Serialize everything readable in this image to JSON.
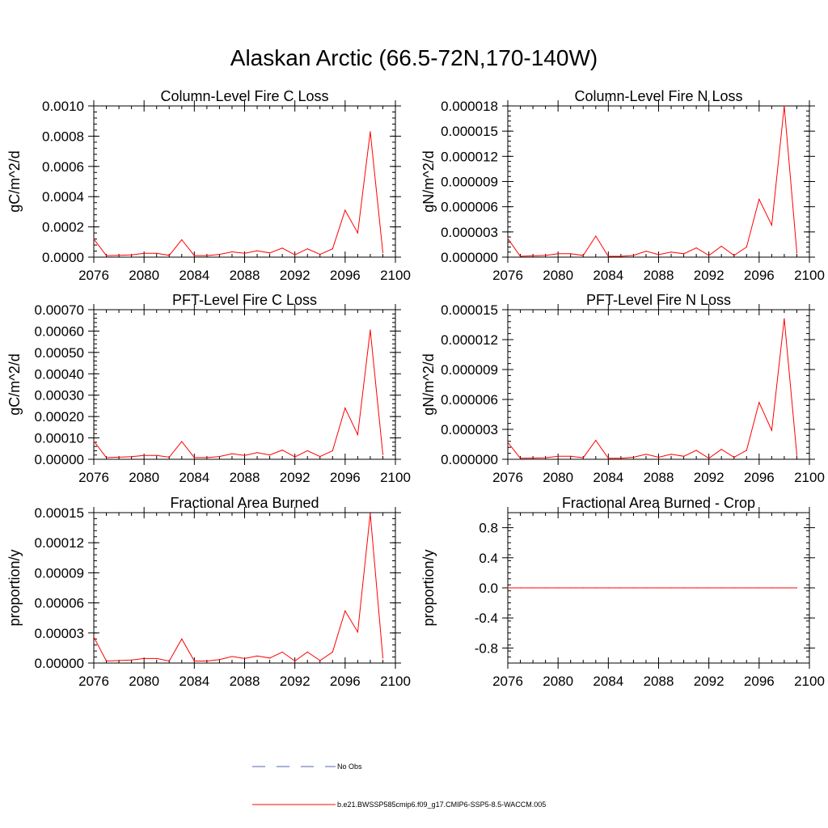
{
  "title": "Alaskan Arctic (66.5-72N,170-140W)",
  "colors": {
    "model": "#ff0000",
    "obs": "#5566aa",
    "axis": "#000000"
  },
  "chart_data": [
    {
      "type": "line",
      "title": "Column-Level Fire C Loss",
      "ylabel": "gC/m^2/d",
      "xlim": [
        2076,
        2100
      ],
      "ylim": [
        0,
        0.001
      ],
      "xticks": [
        "2076",
        "2080",
        "2084",
        "2088",
        "2092",
        "2096",
        "2100"
      ],
      "yticks": [
        "0.0000",
        "0.0002",
        "0.0004",
        "0.0006",
        "0.0008",
        "0.0010"
      ],
      "x": [
        2076,
        2077,
        2078,
        2079,
        2080,
        2081,
        2082,
        2083,
        2084,
        2085,
        2086,
        2087,
        2088,
        2089,
        2090,
        2091,
        2092,
        2093,
        2094,
        2095,
        2096,
        2097,
        2098,
        2099
      ],
      "values": [
        0.00012,
        1e-05,
        1.2e-05,
        1.5e-05,
        2.5e-05,
        2.5e-05,
        1.2e-05,
        0.000115,
        1e-05,
        1e-05,
        1.8e-05,
        3.5e-05,
        2.5e-05,
        4.2e-05,
        2.8e-05,
        6e-05,
        1.5e-05,
        5.5e-05,
        1.8e-05,
        5.5e-05,
        0.00031,
        0.00016,
        0.00083,
        3e-05
      ]
    },
    {
      "type": "line",
      "title": "Column-Level Fire N Loss",
      "ylabel": "gN/m^2/d",
      "xlim": [
        2076,
        2100
      ],
      "ylim": [
        0,
        1.8e-05
      ],
      "xticks": [
        "2076",
        "2080",
        "2084",
        "2088",
        "2092",
        "2096",
        "2100"
      ],
      "yticks": [
        "0.000000",
        "0.000003",
        "0.000006",
        "0.000009",
        "0.000012",
        "0.000015",
        "0.000018"
      ],
      "x": [
        2076,
        2077,
        2078,
        2079,
        2080,
        2081,
        2082,
        2083,
        2084,
        2085,
        2086,
        2087,
        2088,
        2089,
        2090,
        2091,
        2092,
        2093,
        2094,
        2095,
        2096,
        2097,
        2098,
        2099
      ],
      "values": [
        2.2e-06,
        1e-07,
        1.5e-07,
        2e-07,
        4e-07,
        4e-07,
        2e-07,
        2.5e-06,
        1e-07,
        1e-07,
        2e-07,
        7e-07,
        3e-07,
        6e-07,
        4e-07,
        1.1e-06,
        2e-07,
        1.3e-06,
        2e-07,
        1.2e-06,
        6.9e-06,
        3.8e-06,
        1.8e-05,
        5e-07
      ]
    },
    {
      "type": "line",
      "title": "PFT-Level Fire C Loss",
      "ylabel": "gC/m^2/d",
      "xlim": [
        2076,
        2100
      ],
      "ylim": [
        0,
        0.0007
      ],
      "xticks": [
        "2076",
        "2080",
        "2084",
        "2088",
        "2092",
        "2096",
        "2100"
      ],
      "yticks": [
        "0.00000",
        "0.00010",
        "0.00020",
        "0.00030",
        "0.00040",
        "0.00050",
        "0.00060",
        "0.00070"
      ],
      "x": [
        2076,
        2077,
        2078,
        2079,
        2080,
        2081,
        2082,
        2083,
        2084,
        2085,
        2086,
        2087,
        2088,
        2089,
        2090,
        2091,
        2092,
        2093,
        2094,
        2095,
        2096,
        2097,
        2098,
        2099
      ],
      "values": [
        8.5e-05,
        8e-06,
        1e-05,
        1.2e-05,
        1.8e-05,
        1.8e-05,
        1e-05,
        8.3e-05,
        8e-06,
        8e-06,
        1.3e-05,
        2.6e-05,
        1.8e-05,
        3.1e-05,
        2e-05,
        4.3e-05,
        1.1e-05,
        4e-05,
        1.3e-05,
        4e-05,
        0.00024,
        0.000115,
        0.000605,
        2.2e-05
      ]
    },
    {
      "type": "line",
      "title": "PFT-Level Fire N Loss",
      "ylabel": "gN/m^2/d",
      "xlim": [
        2076,
        2100
      ],
      "ylim": [
        0,
        1.5e-05
      ],
      "xticks": [
        "2076",
        "2080",
        "2084",
        "2088",
        "2092",
        "2096",
        "2100"
      ],
      "yticks": [
        "0.000000",
        "0.000003",
        "0.000006",
        "0.000009",
        "0.000012",
        "0.000015"
      ],
      "x": [
        2076,
        2077,
        2078,
        2079,
        2080,
        2081,
        2082,
        2083,
        2084,
        2085,
        2086,
        2087,
        2088,
        2089,
        2090,
        2091,
        2092,
        2093,
        2094,
        2095,
        2096,
        2097,
        2098,
        2099
      ],
      "values": [
        1.7e-06,
        1e-07,
        1.2e-07,
        1.5e-07,
        3e-07,
        3e-07,
        1.5e-07,
        1.9e-06,
        1e-07,
        1e-07,
        2e-07,
        5e-07,
        2e-07,
        5e-07,
        3e-07,
        9e-07,
        1e-07,
        1e-06,
        2e-07,
        9e-07,
        5.7e-06,
        2.9e-06,
        1.41e-05,
        4e-07
      ]
    },
    {
      "type": "line",
      "title": "Fractional Area Burned",
      "ylabel": "proportion/y",
      "xlim": [
        2076,
        2100
      ],
      "ylim": [
        0,
        0.00015
      ],
      "xticks": [
        "2076",
        "2080",
        "2084",
        "2088",
        "2092",
        "2096",
        "2100"
      ],
      "yticks": [
        "0.00000",
        "0.00003",
        "0.00006",
        "0.00009",
        "0.00012",
        "0.00015"
      ],
      "x": [
        2076,
        2077,
        2078,
        2079,
        2080,
        2081,
        2082,
        2083,
        2084,
        2085,
        2086,
        2087,
        2088,
        2089,
        2090,
        2091,
        2092,
        2093,
        2094,
        2095,
        2096,
        2097,
        2098,
        2099
      ],
      "values": [
        2.6e-05,
        2e-06,
        2.5e-06,
        3e-06,
        4.5e-06,
        4.5e-06,
        2e-06,
        2.4e-05,
        2e-06,
        2e-06,
        3.5e-06,
        6.5e-06,
        4.5e-06,
        7e-06,
        5e-06,
        1.1e-05,
        2e-06,
        1.1e-05,
        2.5e-06,
        1.1e-05,
        5.2e-05,
        3.1e-05,
        0.000149,
        5e-06
      ]
    },
    {
      "type": "line",
      "title": "Fractional Area Burned - Crop",
      "ylabel": "proportion/y",
      "xlim": [
        2076,
        2100
      ],
      "ylim": [
        -1,
        1
      ],
      "xticks": [
        "2076",
        "2080",
        "2084",
        "2088",
        "2092",
        "2096",
        "2100"
      ],
      "yticks": [
        "-0.8",
        "-0.4",
        "0.0",
        "0.4",
        "0.8"
      ],
      "ytickvals": [
        -0.8,
        -0.4,
        0,
        0.4,
        0.8
      ],
      "x": [
        2076,
        2077,
        2078,
        2079,
        2080,
        2081,
        2082,
        2083,
        2084,
        2085,
        2086,
        2087,
        2088,
        2089,
        2090,
        2091,
        2092,
        2093,
        2094,
        2095,
        2096,
        2097,
        2098,
        2099
      ],
      "values": [
        0,
        0,
        0,
        0,
        0,
        0,
        0,
        0,
        0,
        0,
        0,
        0,
        0,
        0,
        0,
        0,
        0,
        0,
        0,
        0,
        0,
        0,
        0,
        0
      ]
    }
  ],
  "legend": [
    {
      "label": "No Obs",
      "style": "dashed"
    },
    {
      "label": "b.e21.BWSSP585cmip6.f09_g17.CMIP6-SSP5-8.5-WACCM.005",
      "style": "solid"
    }
  ]
}
